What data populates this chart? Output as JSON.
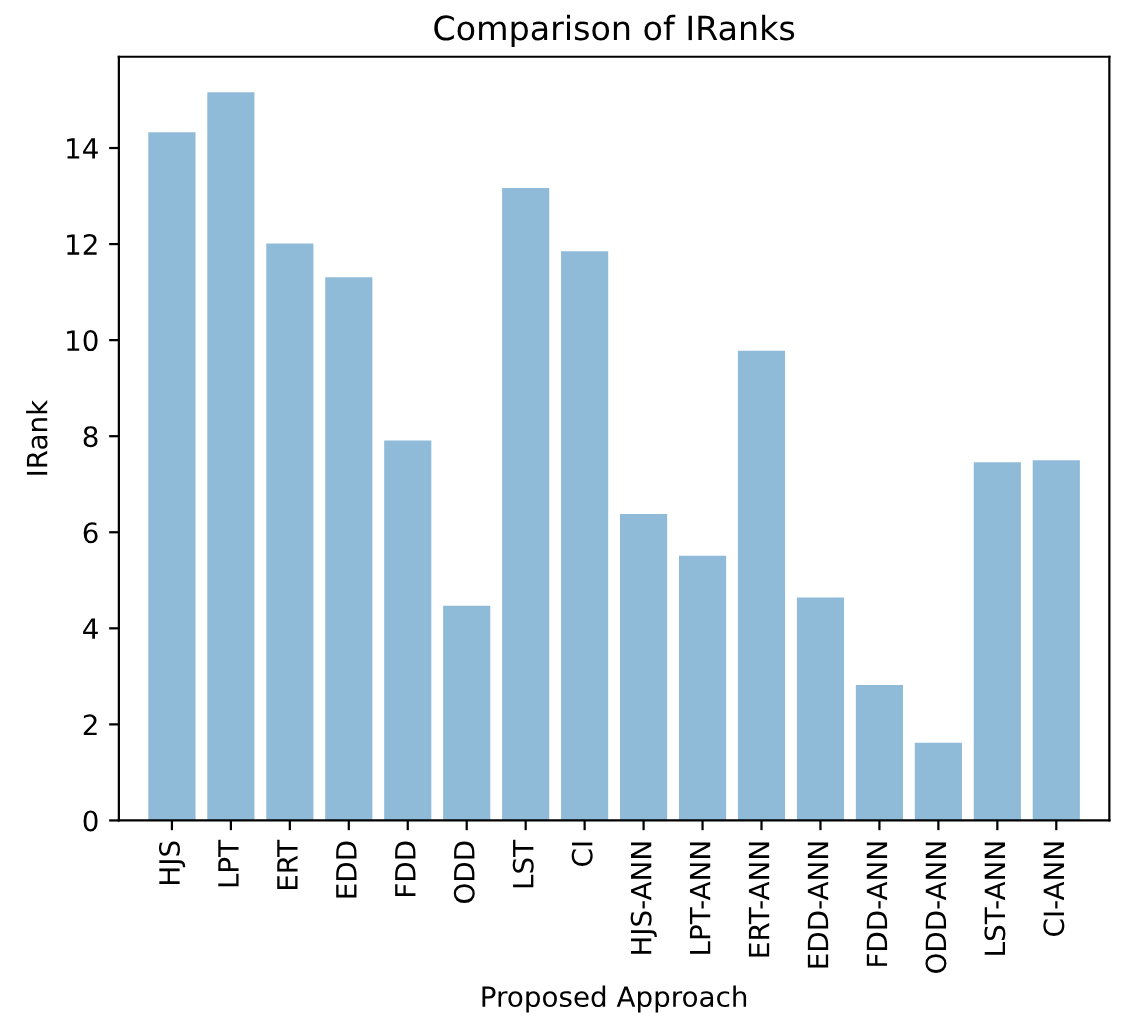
{
  "chart_data": {
    "type": "bar",
    "title": "Comparison of IRanks",
    "xlabel": "Proposed Approach",
    "ylabel": "IRank",
    "categories": [
      "HJS",
      "LPT",
      "ERT",
      "EDD",
      "FDD",
      "ODD",
      "LST",
      "CI",
      "HJS-ANN",
      "LPT-ANN",
      "ERT-ANN",
      "EDD-ANN",
      "FDD-ANN",
      "ODD-ANN",
      "LST-ANN",
      "CI-ANN"
    ],
    "values": [
      14.33,
      15.16,
      12.01,
      11.31,
      7.91,
      4.47,
      13.17,
      11.85,
      6.38,
      5.51,
      9.78,
      4.64,
      2.82,
      1.62,
      7.46,
      7.5
    ],
    "color": "#8fbbd9",
    "ylim": [
      0,
      15.9
    ],
    "yticks": [
      0,
      2,
      4,
      6,
      8,
      10,
      12,
      14
    ],
    "grid": false
  }
}
